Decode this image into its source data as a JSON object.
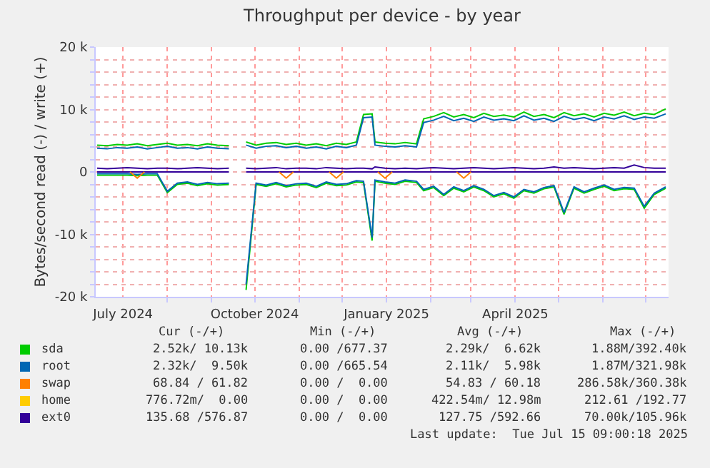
{
  "chart_data": {
    "type": "line",
    "title": "Throughput per device - by year",
    "ylabel": "Bytes/second read (-) / write (+)",
    "x": [
      "2024-06-13",
      "2024-06-20",
      "2024-06-27",
      "2024-07-04",
      "2024-07-11",
      "2024-07-18",
      "2024-07-25",
      "2024-08-01",
      "2024-08-08",
      "2024-08-15",
      "2024-08-22",
      "2024-08-29",
      "2024-09-05",
      "2024-09-13",
      "2024-09-19",
      "2024-09-25",
      "2024-10-02",
      "2024-10-09",
      "2024-10-16",
      "2024-10-23",
      "2024-10-30",
      "2024-11-06",
      "2024-11-13",
      "2024-11-20",
      "2024-11-27",
      "2024-12-04",
      "2024-12-11",
      "2024-12-16",
      "2024-12-22",
      "2024-12-24",
      "2024-12-31",
      "2025-01-07",
      "2025-01-14",
      "2025-01-22",
      "2025-01-27",
      "2025-02-03",
      "2025-02-10",
      "2025-02-17",
      "2025-02-24",
      "2025-03-03",
      "2025-03-10",
      "2025-03-17",
      "2025-03-24",
      "2025-03-31",
      "2025-04-07",
      "2025-04-14",
      "2025-04-21",
      "2025-04-28",
      "2025-05-05",
      "2025-05-12",
      "2025-05-19",
      "2025-05-26",
      "2025-06-02",
      "2025-06-09",
      "2025-06-16",
      "2025-06-23",
      "2025-06-30",
      "2025-07-07",
      "2025-07-15"
    ],
    "series": [
      {
        "color": "#330099",
        "x": [
          "2024-06-13",
          "2024-09-13",
          "2024-09-19",
          "2024-09-25",
          "2025-07-15"
        ],
        "values": [
          0,
          0,
          null,
          0,
          0
        ]
      },
      {
        "name": "sda",
        "color": "#00cc00",
        "values": [
          4300,
          4200,
          4400,
          4300,
          4500,
          4200,
          4400,
          4600,
          4300,
          4400,
          4200,
          4500,
          4300,
          4200,
          null,
          4800,
          4300,
          4600,
          4700,
          4400,
          4600,
          4300,
          4500,
          4200,
          4600,
          4400,
          4800,
          9200,
          9300,
          4800,
          4600,
          4500,
          4700,
          4500,
          8500,
          8900,
          9500,
          8800,
          9200,
          8700,
          9400,
          8900,
          9100,
          8800,
          9600,
          8900,
          9200,
          8700,
          9500,
          9000,
          9300,
          8800,
          9400,
          9100,
          9600,
          9000,
          9400,
          9200,
          10100
        ]
      },
      {
        "color": "#00cc00",
        "values": [
          -500,
          -500,
          -500,
          -500,
          -600,
          -500,
          -500,
          -3300,
          -2000,
          -1800,
          -2200,
          -1900,
          -2100,
          -2000,
          null,
          -18900,
          -2000,
          -2300,
          -1900,
          -2400,
          -2100,
          -2000,
          -2500,
          -1800,
          -2200,
          -2100,
          -1600,
          -1700,
          -11000,
          -1500,
          -1800,
          -2000,
          -1500,
          -1700,
          -3000,
          -2500,
          -3800,
          -2600,
          -3200,
          -2400,
          -3000,
          -4000,
          -3500,
          -4200,
          -3000,
          -3400,
          -2700,
          -2400,
          -6800,
          -2600,
          -3400,
          -2800,
          -2300,
          -3000,
          -2700,
          -2800,
          -5800,
          -3600,
          -2600
        ]
      },
      {
        "name": "root",
        "color": "#0066b3",
        "values": [
          3800,
          3700,
          3900,
          3800,
          4000,
          3700,
          3900,
          4100,
          3800,
          3900,
          3700,
          4000,
          3800,
          3700,
          null,
          4300,
          3800,
          4100,
          4200,
          3900,
          4100,
          3800,
          4000,
          3700,
          4100,
          3900,
          4300,
          8700,
          8800,
          4300,
          4100,
          4000,
          4200,
          4000,
          7900,
          8300,
          8900,
          8200,
          8600,
          8100,
          8800,
          8300,
          8500,
          8200,
          9000,
          8300,
          8600,
          8100,
          8900,
          8400,
          8700,
          8200,
          8800,
          8500,
          9000,
          8400,
          8800,
          8600,
          9300
        ]
      },
      {
        "color": "#0066b3",
        "values": [
          -300,
          -300,
          -300,
          -300,
          -400,
          -300,
          -300,
          -3100,
          -1800,
          -1600,
          -2000,
          -1700,
          -1900,
          -1800,
          null,
          -18000,
          -1800,
          -2100,
          -1700,
          -2200,
          -1900,
          -1800,
          -2300,
          -1600,
          -2000,
          -1900,
          -1400,
          -1500,
          -10500,
          -1300,
          -1600,
          -1800,
          -1300,
          -1500,
          -2800,
          -2300,
          -3600,
          -2400,
          -3000,
          -2200,
          -2800,
          -3800,
          -3300,
          -4000,
          -2800,
          -3200,
          -2500,
          -2200,
          -6500,
          -2400,
          -3200,
          -2600,
          -2100,
          -2800,
          -2500,
          -2600,
          -5500,
          -3400,
          -2400
        ]
      },
      {
        "name": "swap",
        "color": "#ff8000",
        "x": [
          "2024-07-06",
          "2024-07-11",
          "2024-07-16",
          "2024-07-17",
          "2024-10-18",
          "2024-10-23",
          "2024-10-28",
          "2024-10-29",
          "2024-11-22",
          "2024-11-27",
          "2024-12-02",
          "2024-12-03",
          "2024-12-26",
          "2024-12-31",
          "2025-01-05",
          "2025-01-06",
          "2025-02-19",
          "2025-02-24",
          "2025-03-01"
        ],
        "values": [
          0,
          -1000,
          0,
          null,
          0,
          -1000,
          0,
          null,
          0,
          -1000,
          0,
          null,
          0,
          -1000,
          0,
          null,
          0,
          -1000,
          0
        ]
      },
      {
        "name": "home",
        "color": "#ffcc00",
        "values": [
          null,
          null,
          null,
          null,
          null,
          null,
          null,
          null,
          null,
          null,
          null,
          null,
          null,
          null,
          null,
          null,
          null,
          null,
          null,
          null,
          null,
          null,
          null,
          null,
          null,
          null,
          null,
          null,
          null,
          null,
          null,
          null,
          null,
          null,
          null,
          null,
          null,
          null,
          null,
          null,
          null,
          null,
          null,
          null,
          null,
          null,
          null,
          null,
          null,
          null,
          null,
          null,
          null,
          null,
          null,
          null,
          null,
          null,
          null
        ]
      },
      {
        "name": "ext0",
        "color": "#330099",
        "values": [
          600,
          500,
          600,
          700,
          600,
          500,
          600,
          600,
          500,
          600,
          700,
          600,
          500,
          600,
          null,
          600,
          500,
          600,
          700,
          500,
          600,
          600,
          500,
          700,
          600,
          500,
          600,
          600,
          500,
          800,
          600,
          500,
          600,
          500,
          600,
          700,
          600,
          500,
          600,
          700,
          600,
          500,
          600,
          700,
          600,
          500,
          600,
          800,
          600,
          700,
          600,
          500,
          600,
          700,
          600,
          1100,
          700,
          600,
          600
        ]
      }
    ],
    "xlim": [
      "2024-06-12",
      "2025-07-17"
    ],
    "xticks": [
      {
        "value": "2024-07-01",
        "label": "July 2024"
      },
      {
        "value": "2024-08-01",
        "label": null
      },
      {
        "value": "2024-09-01",
        "label": null
      },
      {
        "value": "2024-10-01",
        "label": "October 2024"
      },
      {
        "value": "2024-11-01",
        "label": null
      },
      {
        "value": "2024-12-01",
        "label": null
      },
      {
        "value": "2025-01-01",
        "label": "January 2025"
      },
      {
        "value": "2025-02-01",
        "label": null
      },
      {
        "value": "2025-03-01",
        "label": null
      },
      {
        "value": "2025-04-01",
        "label": "April 2025"
      },
      {
        "value": "2025-05-01",
        "label": null
      },
      {
        "value": "2025-06-01",
        "label": null
      },
      {
        "value": "2025-07-01",
        "label": null
      }
    ],
    "ylim": [
      -20000,
      20000
    ],
    "yticks": [
      {
        "value": -20000,
        "label": "-20 k"
      },
      {
        "value": -18000,
        "label": null
      },
      {
        "value": -16000,
        "label": null
      },
      {
        "value": -14000,
        "label": null
      },
      {
        "value": -12000,
        "label": null
      },
      {
        "value": -10000,
        "label": "-10 k"
      },
      {
        "value": -8000,
        "label": null
      },
      {
        "value": -6000,
        "label": null
      },
      {
        "value": -4000,
        "label": null
      },
      {
        "value": -2000,
        "label": null
      },
      0,
      {
        "value": 2000,
        "label": null
      },
      {
        "value": 4000,
        "label": null
      },
      {
        "value": 6000,
        "label": null
      },
      {
        "value": 8000,
        "label": null
      },
      {
        "value": 10000,
        "label": "10 k"
      },
      {
        "value": 12000,
        "label": null
      },
      {
        "value": 14000,
        "label": null
      },
      {
        "value": 16000,
        "label": null
      },
      {
        "value": 18000,
        "label": null
      },
      {
        "value": 20000,
        "label": "20 k"
      }
    ],
    "grid": true,
    "legend": "bottom left",
    "annotations": [
      "Cur (-/+)",
      "Min (-/+)",
      "Avg (-/+)",
      "Max (-/+)",
      "2.52k/ 10.13k",
      "0.00 /677.37",
      "2.29k/  6.62k",
      "1.88M/392.40k",
      "2.32k/  9.50k",
      "0.00 /665.54",
      "2.11k/  5.98k",
      "1.87M/321.98k",
      "68.84 / 61.82",
      "0.00 /  0.00",
      "54.83 / 60.18",
      "286.58k/360.38k",
      "776.72m/  0.00",
      "0.00 /  0.00",
      "422.54m/ 12.98m",
      "212.61 /192.77",
      "135.68 /576.87",
      "0.00 /  0.00",
      "127.75 /592.66",
      "70.00k/105.96k",
      "Last update:  Tue Jul 15 09:00:18 2025"
    ]
  }
}
